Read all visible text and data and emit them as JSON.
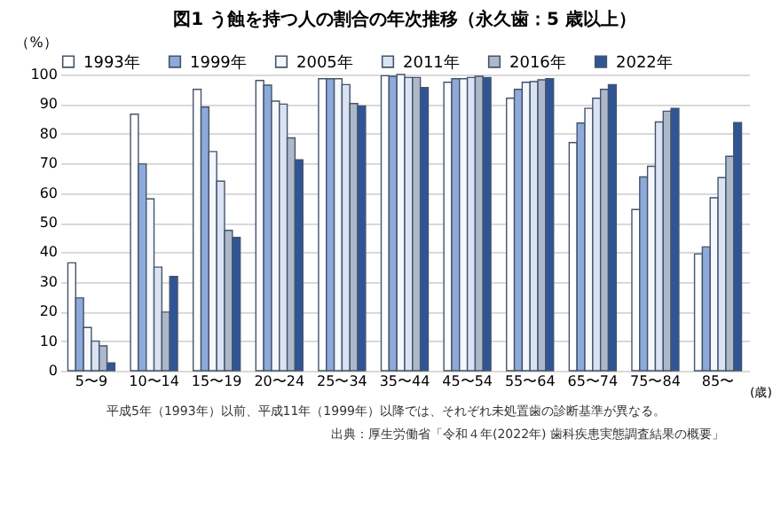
{
  "chart_data": {
    "type": "bar",
    "title": "図1 う蝕を持つ人の割合の年次推移（永久歯：5 歳以上）",
    "ylabel": "（%）",
    "xlabel": "(歳)",
    "categories": [
      "5〜9",
      "10〜14",
      "15〜19",
      "20〜24",
      "25〜34",
      "35〜44",
      "45〜54",
      "55〜64",
      "65〜74",
      "75〜84",
      "85〜"
    ],
    "series": [
      {
        "name": "1993年",
        "color": "#ffffff",
        "values": [
          36.4,
          86.6,
          95,
          98,
          98.6,
          99.6,
          97.4,
          92,
          77,
          54.4,
          39.4
        ]
      },
      {
        "name": "1999年",
        "color": "#8eaadb",
        "values": [
          24.6,
          69.8,
          89,
          96.4,
          98.6,
          99.4,
          98.6,
          95,
          83.6,
          65.4,
          41.8
        ]
      },
      {
        "name": "2005年",
        "color": "#f4f7fc",
        "values": [
          14.6,
          58,
          74,
          91,
          98.6,
          100,
          98.6,
          97.4,
          88.6,
          69,
          58.4
        ]
      },
      {
        "name": "2011年",
        "color": "#dae3f3",
        "values": [
          10,
          35,
          64,
          90,
          96.6,
          99,
          99,
          97.6,
          92,
          84,
          65.2
        ]
      },
      {
        "name": "2016年",
        "color": "#adb9ca",
        "values": [
          8.4,
          19.8,
          47.4,
          78.6,
          90.2,
          99,
          99.4,
          98.2,
          95,
          87.6,
          72.4
        ]
      },
      {
        "name": "2022年",
        "color": "#2f5597",
        "values": [
          2.6,
          31.8,
          45,
          71.2,
          89.4,
          95.6,
          99,
          98.6,
          96.6,
          88.6,
          83.8
        ]
      }
    ],
    "ylim": [
      0,
      100
    ],
    "yticks": [
      0,
      10,
      20,
      30,
      40,
      50,
      60,
      70,
      80,
      90,
      100
    ],
    "grid": "y",
    "legend": "top",
    "annotations": [
      "平成5年（1993年）以前、平成11年（1999年）以降では、それぞれ未処置歯の診断基準が異なる。",
      "出典：厚生労働省「令和４年(2022年) 歯科疾患実態調査結果の概要」"
    ]
  }
}
